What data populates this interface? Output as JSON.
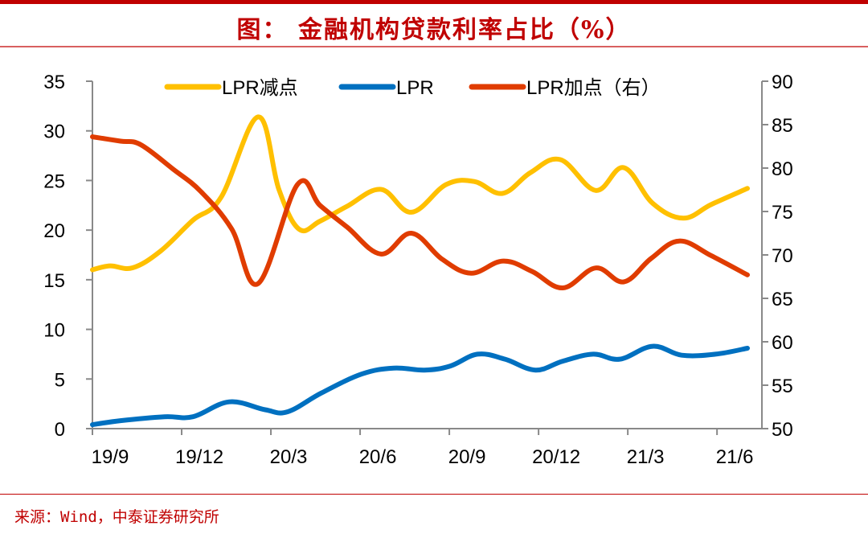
{
  "title": "图：   金融机构贷款利率占比（%）",
  "source": "来源：Wind，中泰证券研究所",
  "chart_data": {
    "type": "line",
    "title": "金融机构贷款利率占比（%）",
    "x_unit": "months since 19/9",
    "x_ticks": [
      {
        "label": "19/9",
        "x": 0
      },
      {
        "label": "19/12",
        "x": 3
      },
      {
        "label": "20/3",
        "x": 6
      },
      {
        "label": "20/6",
        "x": 9
      },
      {
        "label": "20/9",
        "x": 12
      },
      {
        "label": "20/12",
        "x": 15
      },
      {
        "label": "21/3",
        "x": 18
      },
      {
        "label": "21/6",
        "x": 21
      }
    ],
    "x_range": [
      0,
      22.06
    ],
    "y_left": {
      "range": [
        0,
        35
      ],
      "ticks": [
        0,
        5,
        10,
        15,
        20,
        25,
        30,
        35
      ]
    },
    "y_right": {
      "range": [
        50,
        90
      ],
      "ticks": [
        50,
        55,
        60,
        65,
        70,
        75,
        80,
        85,
        90
      ]
    },
    "legend_position": "top",
    "grid": false,
    "series": [
      {
        "name": "LPR减点",
        "axis": "left",
        "color": "#FFC000",
        "points": [
          [
            0,
            16.0
          ],
          [
            0.58,
            16.4
          ],
          [
            1.32,
            16.2
          ],
          [
            2.24,
            17.9
          ],
          [
            3.3,
            21.0
          ],
          [
            4.22,
            23.3
          ],
          [
            5.44,
            31.4
          ],
          [
            6.12,
            24.1
          ],
          [
            6.78,
            20.1
          ],
          [
            7.47,
            20.9
          ],
          [
            8.36,
            22.4
          ],
          [
            9.47,
            24.1
          ],
          [
            10.47,
            21.8
          ],
          [
            11.61,
            24.6
          ],
          [
            12.53,
            24.9
          ],
          [
            13.46,
            23.7
          ],
          [
            14.38,
            25.8
          ],
          [
            15.36,
            27.1
          ],
          [
            16.52,
            24.0
          ],
          [
            17.44,
            26.3
          ],
          [
            18.39,
            22.7
          ],
          [
            19.39,
            21.2
          ],
          [
            20.32,
            22.6
          ],
          [
            21.5,
            24.2
          ]
        ]
      },
      {
        "name": "LPR",
        "axis": "left",
        "color": "#0070C0",
        "points": [
          [
            0,
            0.4
          ],
          [
            0.92,
            0.8
          ],
          [
            2.37,
            1.2
          ],
          [
            3.3,
            1.2
          ],
          [
            4.49,
            2.7
          ],
          [
            5.67,
            1.9
          ],
          [
            6.41,
            1.7
          ],
          [
            7.52,
            3.6
          ],
          [
            8.84,
            5.5
          ],
          [
            9.89,
            6.1
          ],
          [
            10.9,
            5.9
          ],
          [
            11.74,
            6.3
          ],
          [
            12.64,
            7.5
          ],
          [
            13.54,
            7.0
          ],
          [
            14.54,
            5.9
          ],
          [
            15.44,
            6.8
          ],
          [
            16.44,
            7.5
          ],
          [
            17.31,
            7.0
          ],
          [
            18.39,
            8.3
          ],
          [
            19.34,
            7.4
          ],
          [
            20.45,
            7.5
          ],
          [
            21.5,
            8.1
          ]
        ]
      },
      {
        "name": "LPR加点（右）",
        "axis": "right",
        "color": "#E03C00",
        "points": [
          [
            0,
            83.6
          ],
          [
            0.92,
            83.1
          ],
          [
            1.58,
            82.7
          ],
          [
            2.64,
            79.9
          ],
          [
            3.56,
            77.3
          ],
          [
            4.57,
            73.0
          ],
          [
            5.44,
            66.7
          ],
          [
            6.73,
            78.1
          ],
          [
            7.47,
            75.7
          ],
          [
            8.36,
            73.2
          ],
          [
            9.47,
            70.1
          ],
          [
            10.47,
            72.5
          ],
          [
            11.48,
            69.5
          ],
          [
            12.43,
            67.9
          ],
          [
            13.48,
            69.3
          ],
          [
            14.43,
            68.1
          ],
          [
            15.44,
            66.2
          ],
          [
            16.52,
            68.5
          ],
          [
            17.44,
            66.9
          ],
          [
            18.34,
            69.6
          ],
          [
            19.26,
            71.6
          ],
          [
            20.32,
            69.9
          ],
          [
            21.5,
            67.7
          ]
        ]
      }
    ]
  }
}
